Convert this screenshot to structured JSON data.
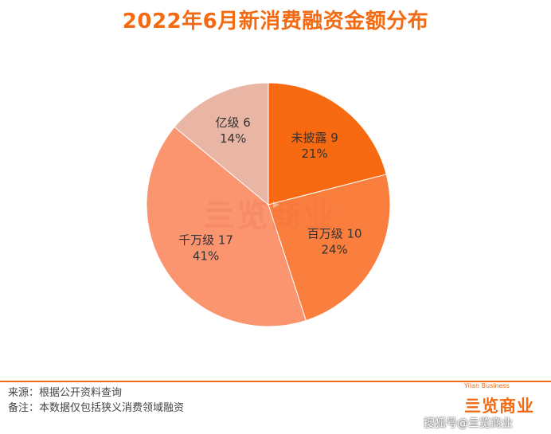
{
  "title": "2022年6月新消费融资金额分布",
  "chart_data": {
    "type": "pie",
    "slices": [
      {
        "name": "未披露",
        "count": "9",
        "percent": "21%",
        "value": 21,
        "color": "#f76a11"
      },
      {
        "name": "百万级",
        "count": "10",
        "percent": "24%",
        "value": 24,
        "color": "#fa7f3e"
      },
      {
        "name": "千万级",
        "count": "17",
        "percent": "41%",
        "value": 41,
        "color": "#fb9570"
      },
      {
        "name": "亿级",
        "count": "6",
        "percent": "14%",
        "value": 14,
        "color": "#e9b5a4"
      }
    ]
  },
  "watermark_center": "亖览商业",
  "notes": {
    "source": "来源：根据公开资料查询",
    "remark": "备注：本数据仅包括狭义消费领域融资"
  },
  "logo": {
    "text": "亖览商业",
    "sub": "Yilan Business"
  },
  "footer_watermark": "搜狐号@亖览商业"
}
